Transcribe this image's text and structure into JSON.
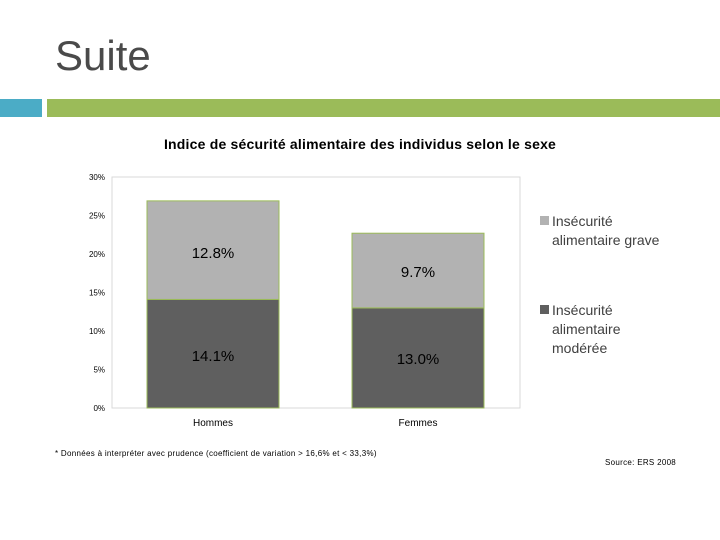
{
  "slide": {
    "title": "Suite"
  },
  "accent": {
    "teal": "#4bacc6",
    "green": "#9bbb59"
  },
  "chart_data": {
    "type": "bar",
    "stacked": true,
    "title": "Indice de sécurité alimentaire des individus selon le sexe",
    "categories": [
      "Hommes",
      "Femmes"
    ],
    "series": [
      {
        "name": "Insécurité alimentaire modérée",
        "values": [
          14.1,
          13.0
        ],
        "labels": [
          "14.1%",
          "13.0%"
        ],
        "color": "#5f5f5f"
      },
      {
        "name": "Insécurité alimentaire grave",
        "values": [
          12.8,
          9.7
        ],
        "labels": [
          "12.8%",
          "9.7%"
        ],
        "color": "#b2b2b2"
      }
    ],
    "ylim": [
      0,
      30
    ],
    "yticks": [
      0,
      5,
      10,
      15,
      20,
      25,
      30
    ],
    "ytick_labels": [
      "0%",
      "5%",
      "10%",
      "15%",
      "20%",
      "25%",
      "30%"
    ],
    "legend_position": "right",
    "legend_order": [
      "Insécurité alimentaire grave",
      "Insécurité alimentaire modérée"
    ],
    "grid": false
  },
  "notes": {
    "footnote": "* Données à interpréter avec prudence (coefficient de variation > 16,6% et < 33,3%)",
    "source": "Source: ERS 2008"
  }
}
